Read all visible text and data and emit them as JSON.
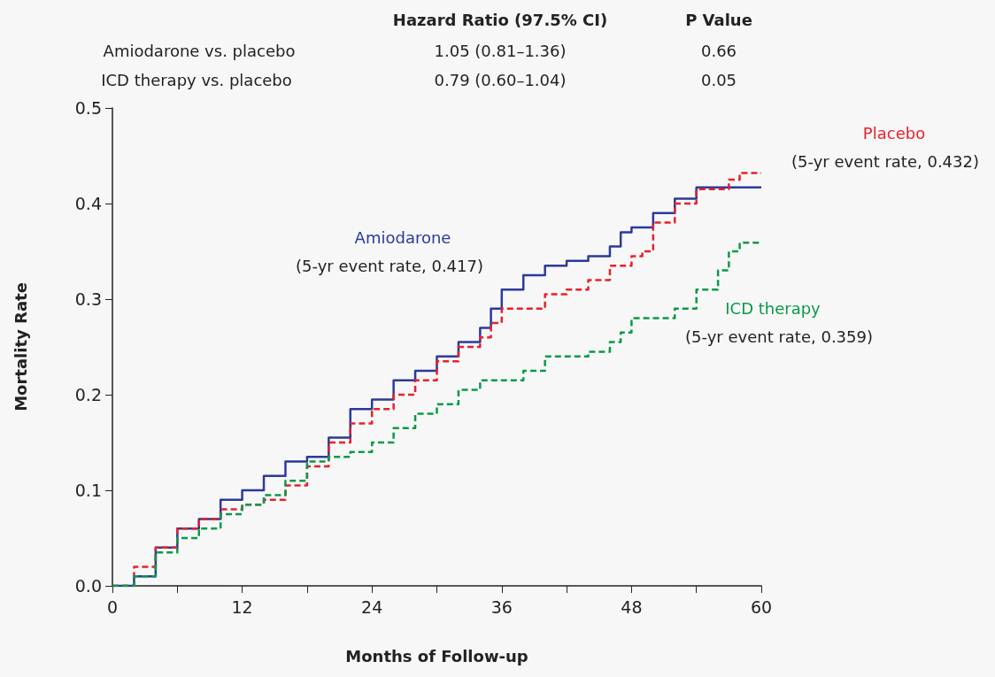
{
  "chart_data": {
    "type": "step",
    "xlabel": "Months of Follow-up",
    "ylabel": "Mortality Rate",
    "annotations": [
      "Hazard Ratio (97.5% CI)",
      "P Value",
      "Amiodarone vs. placebo",
      "1.05 (0.81–1.36)",
      "0.66",
      "ICD therapy vs. placebo",
      "0.79 (0.60–1.04)",
      "0.05",
      "(5-yr event rate, 0.417)",
      "(5-yr event rate, 0.432)",
      "(5-yr event rate, 0.359)"
    ],
    "xlim": [
      0,
      60
    ],
    "ylim": [
      0,
      0.5
    ],
    "xticks": [
      0,
      {
        "value": 6,
        "label": null
      },
      12,
      {
        "value": 18,
        "label": null
      },
      24,
      {
        "value": 30,
        "label": null
      },
      36,
      {
        "value": 42,
        "label": null
      },
      48,
      {
        "value": 54,
        "label": null
      },
      60
    ],
    "yticks": [
      {
        "value": 0,
        "label": "0.0"
      },
      0.1,
      0.2,
      0.3,
      0.4,
      0.5
    ],
    "grid": false,
    "legend": false,
    "marker": "none",
    "series": [
      {
        "name": "Amiodarone",
        "color": "#2b3a9a",
        "line_style": "solid",
        "x": [
          0,
          2,
          4,
          6,
          8,
          10,
          12,
          14,
          16,
          18,
          20,
          22,
          24,
          26,
          28,
          30,
          32,
          34,
          35,
          36,
          38,
          40,
          42,
          44,
          46,
          47,
          48,
          50,
          52,
          54,
          60
        ],
        "values": [
          0,
          0.01,
          0.04,
          0.06,
          0.07,
          0.09,
          0.1,
          0.115,
          0.13,
          0.135,
          0.155,
          0.185,
          0.195,
          0.215,
          0.225,
          0.24,
          0.255,
          0.27,
          0.29,
          0.31,
          0.325,
          0.335,
          0.34,
          0.345,
          0.355,
          0.37,
          0.375,
          0.39,
          0.405,
          0.417,
          0.417
        ]
      },
      {
        "name": "Placebo",
        "color": "#e8212b",
        "line_style": "dashed",
        "x": [
          0,
          2,
          4,
          6,
          8,
          10,
          12,
          14,
          16,
          18,
          20,
          22,
          24,
          26,
          28,
          30,
          32,
          34,
          35,
          36,
          38,
          40,
          42,
          44,
          46,
          48,
          49,
          50,
          52,
          54,
          56,
          57,
          58,
          60
        ],
        "values": [
          0,
          0.02,
          0.04,
          0.06,
          0.07,
          0.08,
          0.085,
          0.09,
          0.105,
          0.125,
          0.15,
          0.17,
          0.185,
          0.2,
          0.215,
          0.235,
          0.25,
          0.26,
          0.275,
          0.29,
          0.29,
          0.305,
          0.31,
          0.32,
          0.335,
          0.345,
          0.35,
          0.38,
          0.4,
          0.415,
          0.415,
          0.425,
          0.432,
          0.432
        ]
      },
      {
        "name": "ICD therapy",
        "color": "#0a9a48",
        "line_style": "dashed",
        "x": [
          0,
          2,
          4,
          6,
          8,
          10,
          12,
          14,
          16,
          18,
          20,
          22,
          24,
          26,
          28,
          30,
          32,
          34,
          36,
          38,
          40,
          42,
          44,
          46,
          47,
          48,
          50,
          52,
          54,
          56,
          57,
          58,
          60
        ],
        "values": [
          0,
          0.01,
          0.035,
          0.05,
          0.06,
          0.075,
          0.085,
          0.095,
          0.11,
          0.13,
          0.135,
          0.14,
          0.15,
          0.165,
          0.18,
          0.19,
          0.205,
          0.215,
          0.215,
          0.225,
          0.24,
          0.24,
          0.245,
          0.255,
          0.265,
          0.28,
          0.28,
          0.29,
          0.31,
          0.33,
          0.35,
          0.359,
          0.359
        ]
      }
    ]
  }
}
